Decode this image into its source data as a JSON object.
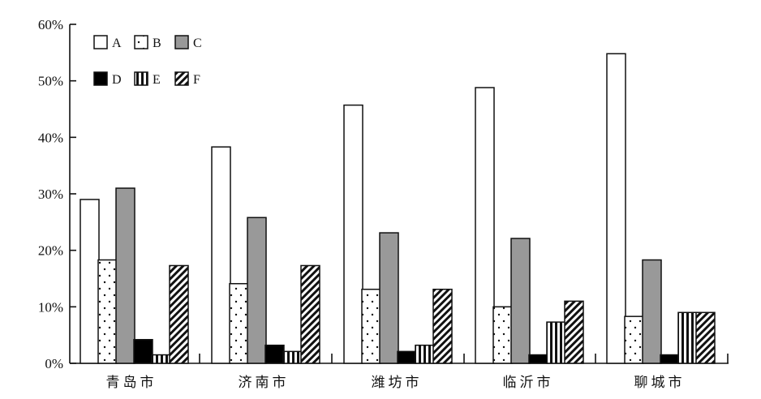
{
  "chart_data": {
    "type": "bar",
    "title": "",
    "xlabel": "",
    "ylabel": "",
    "ylim": [
      0,
      60
    ],
    "yticks": [
      0,
      10,
      20,
      30,
      40,
      50,
      60
    ],
    "ytick_suffix": "%",
    "grid": false,
    "legend_position": "top-left",
    "categories": [
      "青岛市",
      "济南市",
      "潍坊市",
      "临沂市",
      "聊城市"
    ],
    "series": [
      {
        "name": "A",
        "pattern": "white",
        "values": [
          29,
          38.3,
          45.7,
          48.8,
          54.8
        ]
      },
      {
        "name": "B",
        "pattern": "dots",
        "values": [
          18.3,
          14.1,
          13.1,
          10.0,
          8.3
        ]
      },
      {
        "name": "C",
        "pattern": "gray",
        "values": [
          31,
          25.8,
          23.1,
          22.1,
          18.3
        ]
      },
      {
        "name": "D",
        "pattern": "black",
        "values": [
          4.2,
          3.2,
          2.1,
          1.5,
          1.5
        ]
      },
      {
        "name": "E",
        "pattern": "vertical-stripes",
        "values": [
          1.5,
          2.1,
          3.2,
          7.3,
          9.0
        ]
      },
      {
        "name": "F",
        "pattern": "diagonal-hatch",
        "values": [
          17.3,
          17.3,
          13.1,
          11.0,
          9.0
        ]
      }
    ],
    "colors": {
      "gray": "#999999",
      "black": "#000000",
      "white": "#ffffff",
      "stroke": "#111111"
    }
  }
}
